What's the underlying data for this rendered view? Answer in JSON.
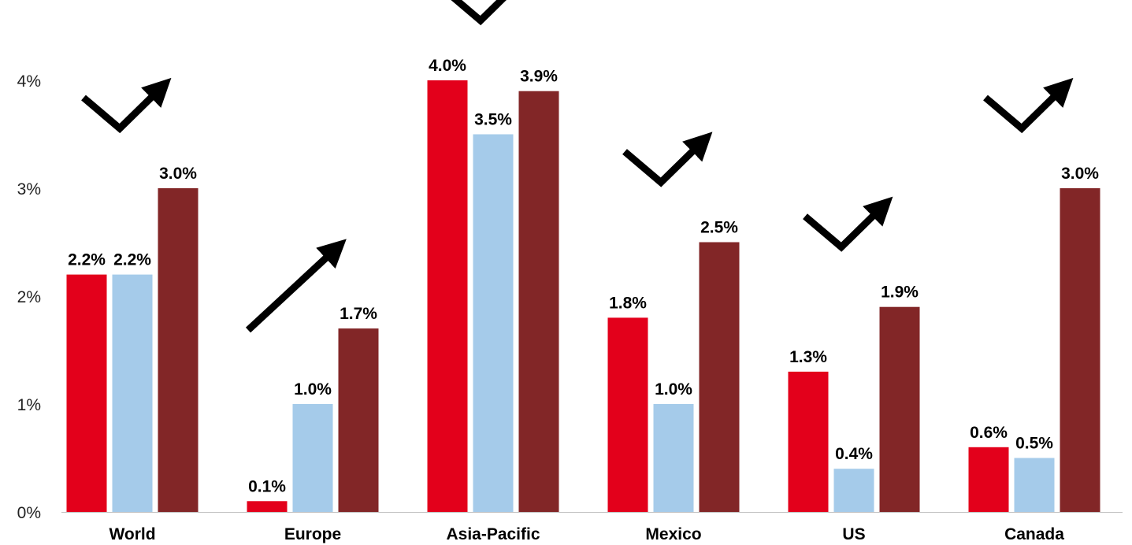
{
  "chart_data": {
    "type": "bar",
    "title": "",
    "xlabel": "",
    "ylabel": "",
    "categories": [
      "World",
      "Europe",
      "Asia-Pacific",
      "Mexico",
      "US",
      "Canada"
    ],
    "series": [
      {
        "color": "#e3001b",
        "values": [
          2.2,
          0.1,
          4.0,
          1.8,
          1.3,
          0.6
        ],
        "labels": [
          "2.2%",
          "0.1%",
          "4.0%",
          "1.8%",
          "1.3%",
          "0.6%"
        ]
      },
      {
        "color": "#a5cbea",
        "values": [
          2.2,
          1.0,
          3.5,
          1.0,
          0.4,
          0.5
        ],
        "labels": [
          "2.2%",
          "1.0%",
          "3.5%",
          "1.0%",
          "0.4%",
          "0.5%"
        ]
      },
      {
        "color": "#822627",
        "values": [
          3.0,
          1.7,
          3.9,
          2.5,
          1.9,
          3.0
        ],
        "labels": [
          "3.0%",
          "1.7%",
          "3.9%",
          "2.5%",
          "1.9%",
          "3.0%"
        ]
      }
    ],
    "ylim": [
      0,
      4
    ],
    "yticks": [
      {
        "value": 0,
        "label": "0%"
      },
      {
        "value": 1,
        "label": "1%"
      },
      {
        "value": 2,
        "label": "2%"
      },
      {
        "value": 3,
        "label": "3%"
      },
      {
        "value": 4,
        "label": "4%"
      }
    ],
    "grid": false,
    "legend": "none",
    "annotations": [
      {
        "category": "World",
        "shape": "check-arrow-icon"
      },
      {
        "category": "Europe",
        "shape": "up-arrow-icon"
      },
      {
        "category": "Asia-Pacific",
        "shape": "check-arrow-icon"
      },
      {
        "category": "Mexico",
        "shape": "check-arrow-icon"
      },
      {
        "category": "US",
        "shape": "check-arrow-icon"
      },
      {
        "category": "Canada",
        "shape": "check-arrow-icon"
      }
    ]
  }
}
